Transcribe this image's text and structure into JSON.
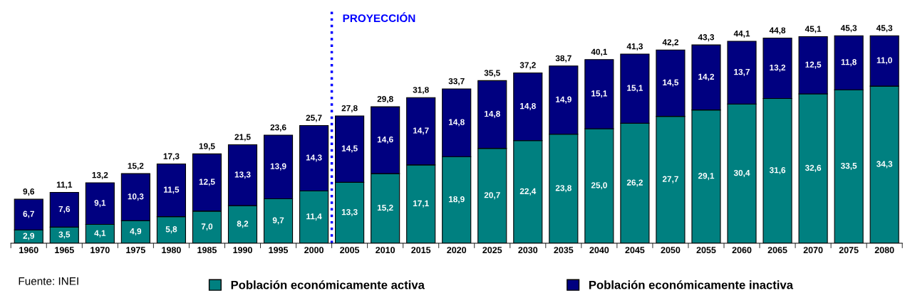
{
  "chart_data": {
    "type": "bar",
    "stacked": true,
    "categories": [
      "1960",
      "1965",
      "1970",
      "1975",
      "1980",
      "1985",
      "1990",
      "1995",
      "2000",
      "2005",
      "2010",
      "2015",
      "2020",
      "2025",
      "2030",
      "2035",
      "2040",
      "2045",
      "2050",
      "2055",
      "2060",
      "2065",
      "2070",
      "2075",
      "2080"
    ],
    "series": [
      {
        "name": "Población económicamente activa",
        "color": "#008080",
        "values": [
          2.9,
          3.5,
          4.1,
          4.9,
          5.8,
          7.0,
          8.2,
          9.7,
          11.4,
          13.3,
          15.2,
          17.1,
          18.9,
          20.7,
          22.4,
          23.8,
          25.0,
          26.2,
          27.7,
          29.1,
          30.4,
          31.6,
          32.6,
          33.5,
          34.3
        ],
        "value_labels": [
          "2,9",
          "3,5",
          "4,1",
          "4,9",
          "5,8",
          "7,0",
          "8,2",
          "9,7",
          "11,4",
          "13,3",
          "15,2",
          "17,1",
          "18,9",
          "20,7",
          "22,4",
          "23,8",
          "25,0",
          "26,2",
          "27,7",
          "29,1",
          "30,4",
          "31,6",
          "32,6",
          "33,5",
          "34,3"
        ]
      },
      {
        "name": "Población económicamente inactiva",
        "color": "#000080",
        "values": [
          6.7,
          7.6,
          9.1,
          10.3,
          11.5,
          12.5,
          13.3,
          13.9,
          14.3,
          14.5,
          14.6,
          14.7,
          14.8,
          14.8,
          14.8,
          14.9,
          15.1,
          15.1,
          14.5,
          14.2,
          13.7,
          13.2,
          12.5,
          11.8,
          11.0
        ],
        "value_labels": [
          "6,7",
          "7,6",
          "9,1",
          "10,3",
          "11,5",
          "12,5",
          "13,3",
          "13,9",
          "14,3",
          "14,5",
          "14,6",
          "14,7",
          "14,8",
          "14,8",
          "14,8",
          "14,9",
          "15,1",
          "15,1",
          "14,5",
          "14,2",
          "13,7",
          "13,2",
          "12,5",
          "11,8",
          "11,0"
        ]
      }
    ],
    "totals": [
      "9,6",
      "11,1",
      "13,2",
      "15,2",
      "17,3",
      "19,5",
      "21,5",
      "23,6",
      "25,7",
      "27,8",
      "29,8",
      "31,8",
      "33,7",
      "35,5",
      "37,2",
      "38,7",
      "40,1",
      "41,3",
      "42,2",
      "43,3",
      "44,1",
      "44,8",
      "45,1",
      "45,3",
      "45,3"
    ],
    "ref_lines": [
      {
        "axis": "x",
        "value": "2005",
        "label": "PROYECCIÓN",
        "color": "#0000ff",
        "line_style": "dotted"
      }
    ],
    "annotations": [
      "Fuente: INEI"
    ],
    "legend": "bottom",
    "tick_labels": "x"
  }
}
